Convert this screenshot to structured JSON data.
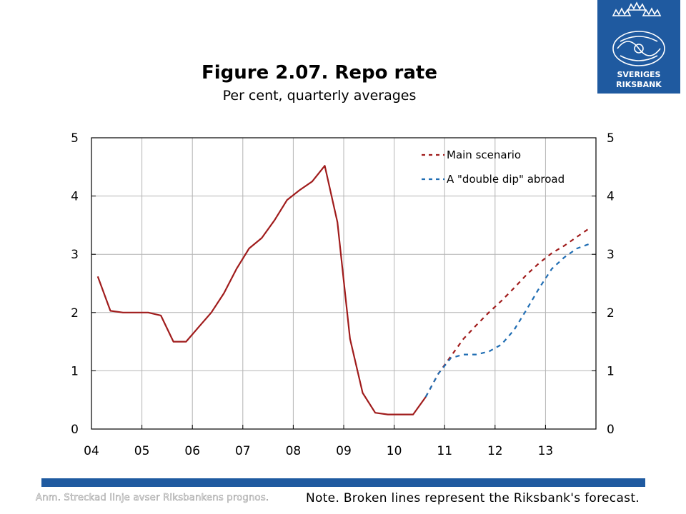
{
  "logo": {
    "line1": "SVERIGES",
    "line2": "RIKSBANK"
  },
  "chart_data": {
    "type": "line",
    "title": "Figure 2.07. Repo rate",
    "subtitle": "Per cent, quarterly averages",
    "x_tick_labels": [
      "04",
      "05",
      "06",
      "07",
      "08",
      "09",
      "10",
      "11",
      "12",
      "13"
    ],
    "ylim": [
      0,
      5
    ],
    "y_ticks": [
      0,
      1,
      2,
      3,
      4,
      5
    ],
    "grid": true,
    "legend_position": "top-right",
    "series": [
      {
        "name": "",
        "style": "solid",
        "color": "#a01c1c",
        "x": [
          "2004 Q1",
          "2004 Q2",
          "2004 Q3",
          "2004 Q4",
          "2005 Q1",
          "2005 Q2",
          "2005 Q3",
          "2005 Q4",
          "2006 Q1",
          "2006 Q2",
          "2006 Q3",
          "2006 Q4",
          "2007 Q1",
          "2007 Q2",
          "2007 Q3",
          "2007 Q4",
          "2008 Q1",
          "2008 Q2",
          "2008 Q3",
          "2008 Q4",
          "2009 Q1",
          "2009 Q2",
          "2009 Q3",
          "2009 Q4",
          "2010 Q1",
          "2010 Q2",
          "2010 Q3"
        ],
        "values": [
          2.62,
          2.03,
          2.0,
          2.0,
          2.0,
          1.95,
          1.5,
          1.5,
          1.75,
          2.0,
          2.33,
          2.75,
          3.1,
          3.28,
          3.58,
          3.93,
          4.1,
          4.25,
          4.52,
          3.55,
          1.55,
          0.62,
          0.28,
          0.25,
          0.25,
          0.25,
          0.55
        ]
      },
      {
        "name": "Main scenario",
        "style": "dashed",
        "color": "#a01c1c",
        "x": [
          "2010 Q3",
          "2010 Q4",
          "2011 Q1",
          "2011 Q2",
          "2011 Q3",
          "2011 Q4",
          "2012 Q1",
          "2012 Q2",
          "2012 Q3",
          "2012 Q4",
          "2013 Q1",
          "2013 Q2",
          "2013 Q3",
          "2013 Q4"
        ],
        "values": [
          0.55,
          0.95,
          1.25,
          1.55,
          1.78,
          2.0,
          2.2,
          2.42,
          2.65,
          2.85,
          3.02,
          3.15,
          3.3,
          3.45
        ]
      },
      {
        "name": "A \"double dip\" abroad",
        "style": "dashed",
        "color": "#1f6db3",
        "x": [
          "2010 Q3",
          "2010 Q4",
          "2011 Q1",
          "2011 Q2",
          "2011 Q3",
          "2011 Q4",
          "2012 Q1",
          "2012 Q2",
          "2012 Q3",
          "2012 Q4",
          "2013 Q1",
          "2013 Q2",
          "2013 Q3",
          "2013 Q4"
        ],
        "values": [
          0.55,
          0.95,
          1.22,
          1.28,
          1.28,
          1.33,
          1.45,
          1.7,
          2.05,
          2.42,
          2.75,
          2.95,
          3.1,
          3.18
        ]
      }
    ]
  },
  "notes": {
    "swedish": "Anm. Streckad linje avser Riksbankens prognos.",
    "english": "Note. Broken lines represent the Riksbank's forecast."
  }
}
